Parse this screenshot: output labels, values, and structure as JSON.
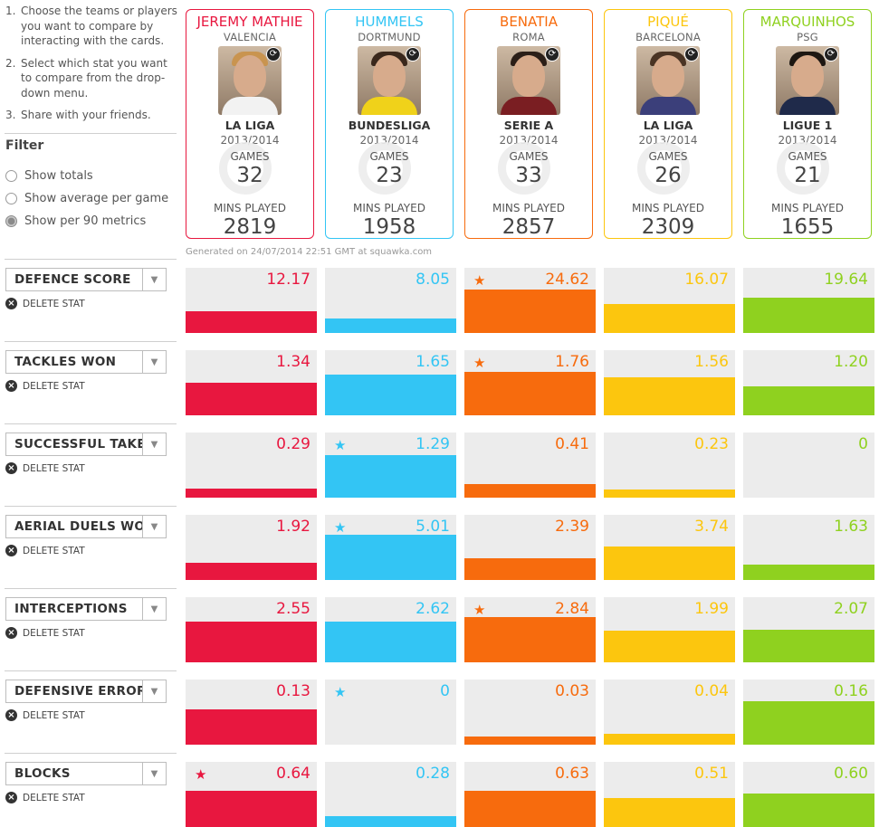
{
  "instructions": [
    {
      "num": "1.",
      "text": "Choose the teams or players you want to compare by interacting with the cards."
    },
    {
      "num": "2.",
      "text": "Select which stat you want to compare from the drop-down menu."
    },
    {
      "num": "3.",
      "text": "Share with your friends."
    }
  ],
  "filter": {
    "title": "Filter",
    "options": [
      {
        "label": "Show totals",
        "selected": false
      },
      {
        "label": "Show average per game",
        "selected": false
      },
      {
        "label": "Show per 90 metrics",
        "selected": true
      }
    ]
  },
  "players": [
    {
      "name": "JEREMY MATHIE",
      "club": "VALENCIA",
      "league": "LA LIGA",
      "season": "2013/2014",
      "games_label": "GAMES",
      "games": "32",
      "mins_label": "MINS PLAYED",
      "mins": "2819",
      "color": "#e8173f",
      "shirt": "#f2f2f2",
      "hair": "#c9944f"
    },
    {
      "name": "HUMMELS",
      "club": "DORTMUND",
      "league": "BUNDESLIGA",
      "season": "2013/2014",
      "games_label": "GAMES",
      "games": "23",
      "mins_label": "MINS PLAYED",
      "mins": "1958",
      "color": "#33c5f4",
      "shirt": "#f0d21a",
      "hair": "#3a281c"
    },
    {
      "name": "BENATIA",
      "club": "ROMA",
      "league": "SERIE A",
      "season": "2013/2014",
      "games_label": "GAMES",
      "games": "33",
      "mins_label": "MINS PLAYED",
      "mins": "2857",
      "color": "#f76b0d",
      "shirt": "#7a1e22",
      "hair": "#2b1f18"
    },
    {
      "name": "PIQUÉ",
      "club": "BARCELONA",
      "league": "LA LIGA",
      "season": "2013/2014",
      "games_label": "GAMES",
      "games": "26",
      "mins_label": "MINS PLAYED",
      "mins": "2309",
      "color": "#fcc60e",
      "shirt": "#3b3f7a",
      "hair": "#4a3424"
    },
    {
      "name": "MARQUINHOS",
      "club": "PSG",
      "league": "LIGUE 1",
      "season": "2013/2014",
      "games_label": "GAMES",
      "games": "21",
      "mins_label": "MINS PLAYED",
      "mins": "1655",
      "color": "#8fd11f",
      "shirt": "#1f2a4a",
      "hair": "#1d1712"
    }
  ],
  "generated": "Generated on 24/07/2014 22:51 GMT at squawka.com",
  "delete_label": "DELETE STAT",
  "stats": [
    {
      "label": "DEFENCE SCORE",
      "values": [
        "12.17",
        "8.05",
        "24.62",
        "16.07",
        "19.64"
      ],
      "fill": [
        0.33,
        0.22,
        0.67,
        0.44,
        0.54
      ],
      "star": 2
    },
    {
      "label": "TACKLES WON",
      "values": [
        "1.34",
        "1.65",
        "1.76",
        "1.56",
        "1.20"
      ],
      "fill": [
        0.5,
        0.62,
        0.66,
        0.59,
        0.45
      ],
      "star": 2
    },
    {
      "label": "SUCCESSFUL TAKE",
      "values": [
        "0.29",
        "1.29",
        "0.41",
        "0.23",
        "0"
      ],
      "fill": [
        0.14,
        0.65,
        0.21,
        0.12,
        0.0
      ],
      "star": 1
    },
    {
      "label": "AERIAL DUELS WO",
      "values": [
        "1.92",
        "5.01",
        "2.39",
        "3.74",
        "1.63"
      ],
      "fill": [
        0.27,
        0.7,
        0.33,
        0.52,
        0.23
      ],
      "star": 1
    },
    {
      "label": "INTERCEPTIONS",
      "values": [
        "2.55",
        "2.62",
        "2.84",
        "1.99",
        "2.07"
      ],
      "fill": [
        0.62,
        0.63,
        0.69,
        0.48,
        0.5
      ],
      "star": 2
    },
    {
      "label": "DEFENSIVE ERROR",
      "values": [
        "0.13",
        "0",
        "0.03",
        "0.04",
        "0.16"
      ],
      "fill": [
        0.54,
        0.0,
        0.13,
        0.17,
        0.67
      ],
      "star": 1
    },
    {
      "label": "BLOCKS",
      "values": [
        "0.64",
        "0.28",
        "0.63",
        "0.51",
        "0.60"
      ],
      "fill": [
        0.56,
        0.16,
        0.55,
        0.45,
        0.52
      ],
      "star": 0
    }
  ]
}
